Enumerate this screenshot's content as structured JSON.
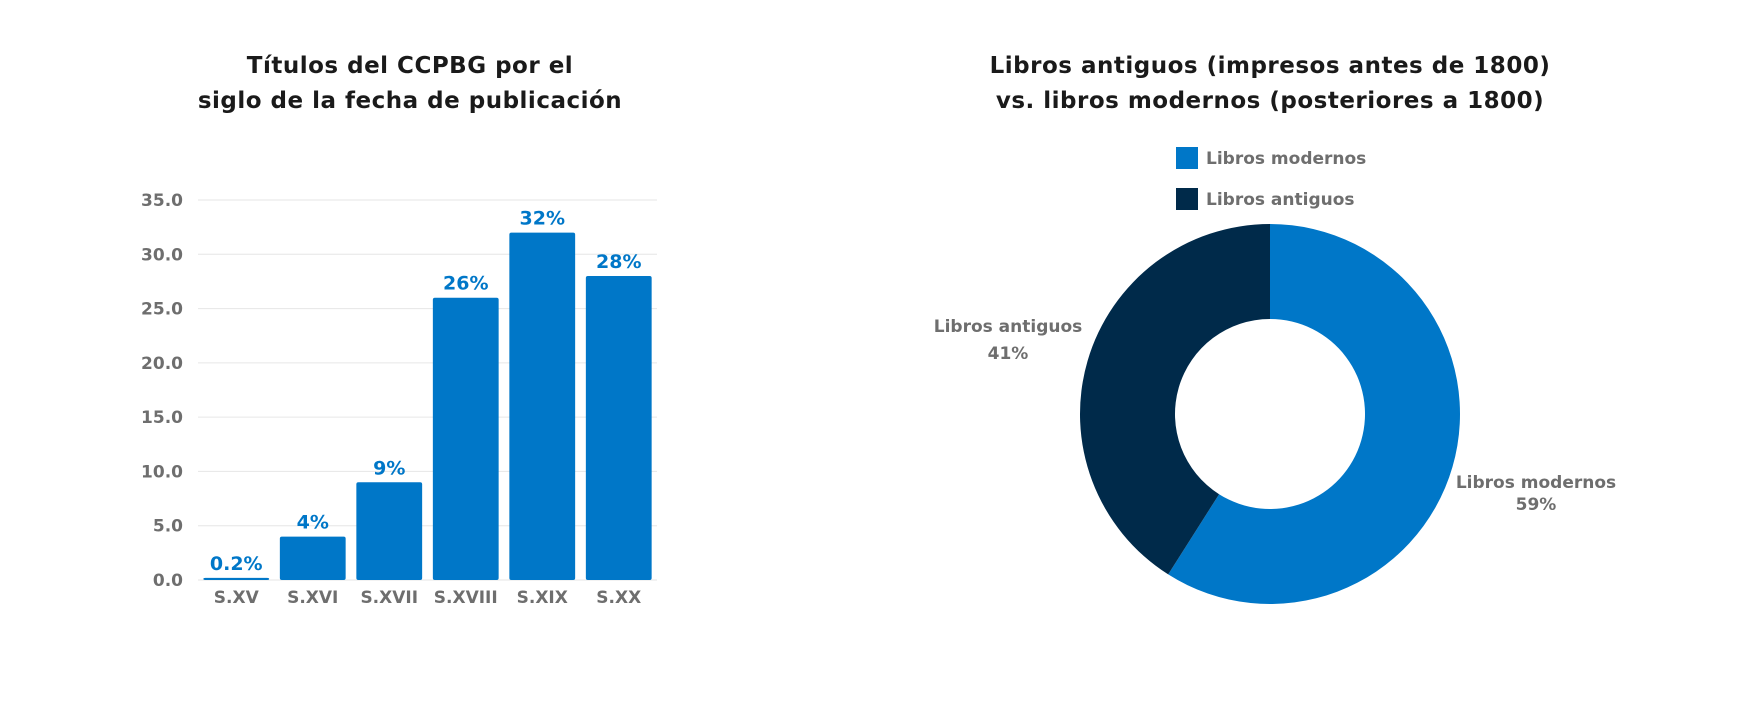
{
  "chart_data": [
    {
      "type": "bar",
      "title_lines": [
        "Títulos del CCPBG por el",
        "siglo de la fecha de publicación"
      ],
      "categories": [
        "S.XV",
        "S.XVI",
        "S.XVII",
        "S.XVIII",
        "S.XIX",
        "S.XX"
      ],
      "values": [
        0.2,
        4,
        9,
        26,
        32,
        28
      ],
      "data_labels": [
        "0.2%",
        "4%",
        "9%",
        "26%",
        "32%",
        "28%"
      ],
      "yticks": [
        "0.0",
        "5.0",
        "10.0",
        "15.0",
        "20.0",
        "25.0",
        "30.0",
        "35.0"
      ],
      "ylim": [
        0,
        35
      ],
      "grid": true,
      "color": "#0077c8"
    },
    {
      "type": "pie",
      "subtype": "donut",
      "title_lines": [
        "Libros antiguos (impresos antes de 1800)",
        "vs. libros modernos (posteriores a 1800)"
      ],
      "slices": [
        {
          "name": "Libros modernos",
          "value": 59,
          "label": "59%",
          "color": "#0077c8"
        },
        {
          "name": "Libros antiguos",
          "value": 41,
          "label": "41%",
          "color": "#002a4a"
        }
      ],
      "legend": [
        "Libros modernos",
        "Libros antiguos"
      ],
      "legend_position": "top"
    }
  ]
}
